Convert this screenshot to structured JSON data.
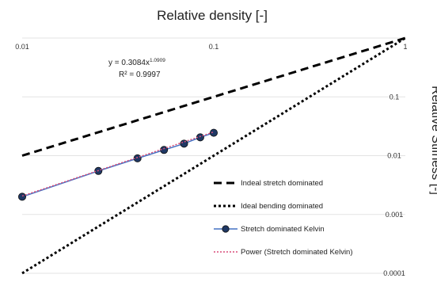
{
  "chart_data": {
    "type": "line",
    "title": "",
    "xlabel": "Relative density [-]",
    "ylabel": "Relative Stifness [-]",
    "xscale": "log",
    "yscale": "log",
    "xlim": [
      0.01,
      1
    ],
    "ylim": [
      0.0001,
      1
    ],
    "xticks": [
      0.01,
      0.1,
      1
    ],
    "xtick_labels": [
      "0.01",
      "0.1",
      "1"
    ],
    "yticks": [
      0.0001,
      0.001,
      0.01,
      0.1,
      1
    ],
    "ytick_labels": [
      "0.0001",
      "0.001",
      "0.01",
      "0.1",
      "1"
    ],
    "x_axis_position": "top",
    "y_axis_position": "right",
    "grid": "horizontal",
    "legend_position": "bottom-right",
    "annotation": {
      "line1_prefix": "y = 0.3084x",
      "line1_exponent": "1.0909",
      "line2": "R² = 0.9997"
    },
    "series": [
      {
        "name": "Indeal stretch dominated",
        "style": "dashed",
        "color": "#000000",
        "x": [
          0.01,
          1
        ],
        "y": [
          0.01,
          1
        ]
      },
      {
        "name": "Ideal bending dominated",
        "style": "dotted",
        "color": "#000000",
        "x": [
          0.01,
          1
        ],
        "y": [
          0.0001,
          1
        ]
      },
      {
        "name": "Stretch dominated Kelvin",
        "style": "solid-markers",
        "color": "#4472c4",
        "marker_color": "#1f3864",
        "x": [
          0.01,
          0.025,
          0.04,
          0.055,
          0.07,
          0.085,
          0.1
        ],
        "y": [
          0.002,
          0.0055,
          0.009,
          0.0125,
          0.016,
          0.0205,
          0.0245
        ]
      },
      {
        "name": "Power (Stretch dominated Kelvin)",
        "style": "dotted",
        "color": "#d94c7a",
        "x": [
          0.01,
          0.1
        ],
        "y": [
          0.00206,
          0.0253
        ]
      }
    ]
  }
}
